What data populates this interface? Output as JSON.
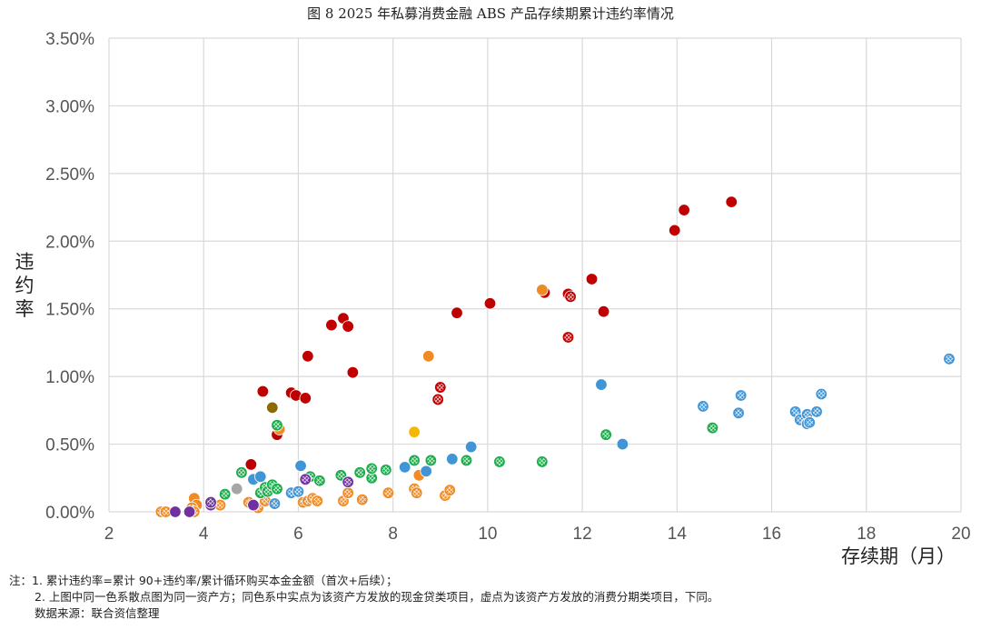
{
  "chart_data": {
    "type": "scatter",
    "title": "图 8   2025 年私募消费金融 ABS 产品存续期累计违约率情况",
    "xlabel": "存续期（月）",
    "ylabel": "违约率",
    "xlim": [
      2,
      20
    ],
    "ylim": [
      0,
      0.035
    ],
    "x_ticks": [
      "2",
      "4",
      "6",
      "8",
      "10",
      "12",
      "14",
      "16",
      "18",
      "20"
    ],
    "y_ticks": [
      "0.00%",
      "0.50%",
      "1.00%",
      "1.50%",
      "2.00%",
      "2.50%",
      "3.00%",
      "3.50%"
    ],
    "grid": true,
    "legend": "none",
    "colors": {
      "red": "#c00000",
      "orange": "#f08a24",
      "green": "#1aab4a",
      "blue": "#3f95d6",
      "purple": "#7030a0",
      "yellow": "#f5b800",
      "olive": "#8c6a00",
      "gray": "#a6a6a6"
    },
    "series": [
      {
        "color": "red",
        "style": "solid",
        "points": [
          [
            5.0,
            0.0035
          ],
          [
            5.25,
            0.0089
          ],
          [
            5.45,
            0.0077
          ],
          [
            5.55,
            0.0057
          ],
          [
            5.85,
            0.0088
          ],
          [
            5.95,
            0.0086
          ],
          [
            6.15,
            0.0084
          ],
          [
            6.2,
            0.0115
          ],
          [
            6.7,
            0.0138
          ],
          [
            6.95,
            0.0143
          ],
          [
            7.05,
            0.0137
          ],
          [
            7.15,
            0.0103
          ],
          [
            9.35,
            0.0147
          ],
          [
            10.05,
            0.0154
          ],
          [
            11.2,
            0.0162
          ],
          [
            11.7,
            0.0161
          ],
          [
            12.2,
            0.0172
          ],
          [
            12.45,
            0.0148
          ],
          [
            13.95,
            0.0208
          ],
          [
            14.15,
            0.0223
          ],
          [
            15.15,
            0.0229
          ]
        ]
      },
      {
        "color": "red",
        "style": "hatched",
        "points": [
          [
            8.95,
            0.0083
          ],
          [
            9.0,
            0.0092
          ],
          [
            11.7,
            0.0129
          ],
          [
            11.75,
            0.0159
          ]
        ]
      },
      {
        "color": "orange",
        "style": "solid",
        "points": [
          [
            3.8,
            0.001
          ],
          [
            3.85,
            0.0005
          ],
          [
            5.6,
            0.0061
          ],
          [
            8.55,
            0.0027
          ],
          [
            8.75,
            0.0115
          ],
          [
            11.15,
            0.0164
          ]
        ]
      },
      {
        "color": "orange",
        "style": "hatched",
        "points": [
          [
            3.1,
            0.0
          ],
          [
            3.2,
            0.0
          ],
          [
            3.75,
            0.0003
          ],
          [
            3.8,
            0.0
          ],
          [
            4.35,
            0.0005
          ],
          [
            4.95,
            0.0007
          ],
          [
            5.05,
            0.0005
          ],
          [
            5.15,
            0.0003
          ],
          [
            5.3,
            0.0008
          ],
          [
            6.1,
            0.0007
          ],
          [
            6.2,
            0.0008
          ],
          [
            6.3,
            0.001
          ],
          [
            6.4,
            0.0008
          ],
          [
            6.95,
            0.0008
          ],
          [
            7.05,
            0.0014
          ],
          [
            7.35,
            0.0009
          ],
          [
            7.9,
            0.0014
          ],
          [
            8.45,
            0.0017
          ],
          [
            8.5,
            0.0014
          ],
          [
            9.1,
            0.0012
          ],
          [
            9.2,
            0.0016
          ]
        ]
      },
      {
        "color": "green",
        "style": "hatched",
        "points": [
          [
            4.45,
            0.0013
          ],
          [
            4.8,
            0.0029
          ],
          [
            5.2,
            0.0014
          ],
          [
            5.3,
            0.0018
          ],
          [
            5.35,
            0.0015
          ],
          [
            5.45,
            0.002
          ],
          [
            5.55,
            0.0017
          ],
          [
            5.55,
            0.0064
          ],
          [
            6.25,
            0.0026
          ],
          [
            6.45,
            0.0023
          ],
          [
            6.9,
            0.0027
          ],
          [
            7.3,
            0.0029
          ],
          [
            7.55,
            0.0025
          ],
          [
            7.55,
            0.0032
          ],
          [
            7.85,
            0.0031
          ],
          [
            8.45,
            0.0038
          ],
          [
            8.8,
            0.0038
          ],
          [
            9.55,
            0.0038
          ],
          [
            10.25,
            0.0037
          ],
          [
            11.15,
            0.0037
          ],
          [
            12.5,
            0.0057
          ],
          [
            14.75,
            0.0062
          ]
        ]
      },
      {
        "color": "blue",
        "style": "solid",
        "points": [
          [
            5.05,
            0.0024
          ],
          [
            5.2,
            0.0026
          ],
          [
            6.05,
            0.0034
          ],
          [
            8.25,
            0.0033
          ],
          [
            8.7,
            0.003
          ],
          [
            9.25,
            0.0039
          ],
          [
            9.65,
            0.0048
          ],
          [
            12.4,
            0.0094
          ],
          [
            12.85,
            0.005
          ]
        ]
      },
      {
        "color": "blue",
        "style": "hatched",
        "points": [
          [
            5.5,
            0.0006
          ],
          [
            5.85,
            0.0014
          ],
          [
            6.0,
            0.0015
          ],
          [
            14.55,
            0.0078
          ],
          [
            15.3,
            0.0073
          ],
          [
            15.35,
            0.0086
          ],
          [
            16.5,
            0.0074
          ],
          [
            16.6,
            0.0068
          ],
          [
            16.75,
            0.0072
          ],
          [
            16.75,
            0.0065
          ],
          [
            16.8,
            0.0066
          ],
          [
            16.95,
            0.0074
          ],
          [
            17.05,
            0.0087
          ],
          [
            19.75,
            0.0113
          ]
        ]
      },
      {
        "color": "purple",
        "style": "solid",
        "points": [
          [
            3.4,
            0.0
          ],
          [
            3.7,
            0.0
          ],
          [
            5.05,
            0.0005
          ]
        ]
      },
      {
        "color": "purple",
        "style": "hatched",
        "points": [
          [
            4.15,
            0.0005
          ],
          [
            4.15,
            0.0007
          ],
          [
            6.15,
            0.0024
          ],
          [
            7.05,
            0.0022
          ]
        ]
      },
      {
        "color": "yellow",
        "style": "solid",
        "points": [
          [
            8.45,
            0.0059
          ]
        ]
      },
      {
        "color": "olive",
        "style": "solid",
        "points": [
          [
            5.45,
            0.0077
          ]
        ]
      },
      {
        "color": "gray",
        "style": "solid",
        "points": [
          [
            4.7,
            0.0017
          ]
        ]
      }
    ]
  },
  "notes": {
    "line1": "注：1. 累计违约率=累计 90+违约率/累计循环购买本金金额（首次+后续）；",
    "line2": "2. 上图中同一色系散点图为同一资产方；同色系中实点为该资产方发放的现金贷类项目，虚点为该资产方发放的消费分期类项目，下同。",
    "line3": "数据来源：联合资信整理"
  }
}
